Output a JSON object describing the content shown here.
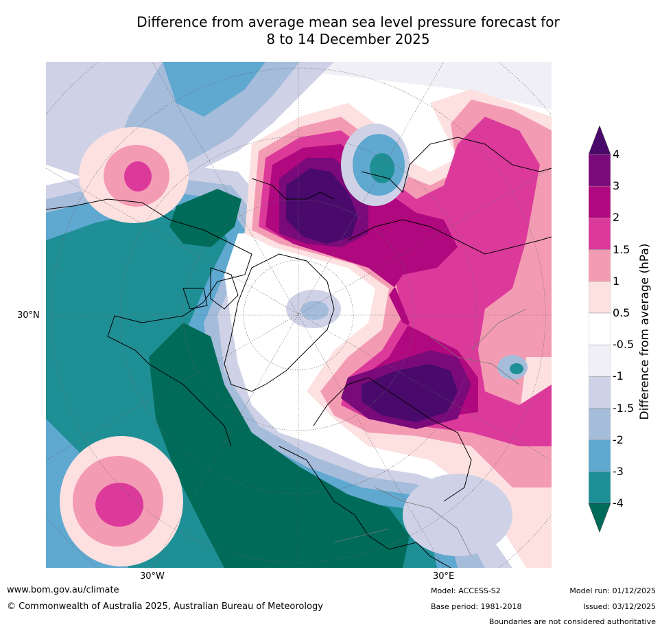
{
  "title": {
    "line1": "Difference from average mean sea level pressure forecast for",
    "line2": "8 to 14 December 2025"
  },
  "map": {
    "projection": "Polar stereographic (Northern Hemisphere)",
    "graticule_labels": {
      "lat_30n": "30°N",
      "lon_30w": "30°W",
      "lon_30e": "30°E"
    }
  },
  "colorbar": {
    "label": "Difference from average (hPa)",
    "ticks": [
      "4",
      "3",
      "2",
      "1.5",
      "1",
      "0.5",
      "-0.5",
      "-1",
      "-1.5",
      "-2",
      "-3",
      "-4"
    ],
    "colors": {
      "gt_4": "#4a0a6b",
      "3_to_4": "#7a0a7a",
      "2_to_3": "#b0087e",
      "1.5_to_2": "#dc3a9b",
      "1_to_1.5": "#f49bb4",
      "0.5_to_1": "#fde0e0",
      "neutral": "#ffffff",
      "m0.5_to_m1": "#f1eff6",
      "m1_to_m1.5": "#cfd2e6",
      "m1.5_to_m2": "#a5bcdb",
      "m2_to_m3": "#5fa8cf",
      "m3_to_m4": "#1f8f96",
      "lt_m4": "#006b58"
    }
  },
  "footer": {
    "url": "www.bom.gov.au/climate",
    "copyright": "© Commonwealth of Australia 2025, Australian Bureau of Meteorology",
    "model": "Model: ACCESS-S2",
    "base_period": "Base period: 1981-2018",
    "model_run": "Model run: 01/12/2025",
    "issued": "Issued: 03/12/2025",
    "disclaimer": "Boundaries are not considered authoritative"
  }
}
